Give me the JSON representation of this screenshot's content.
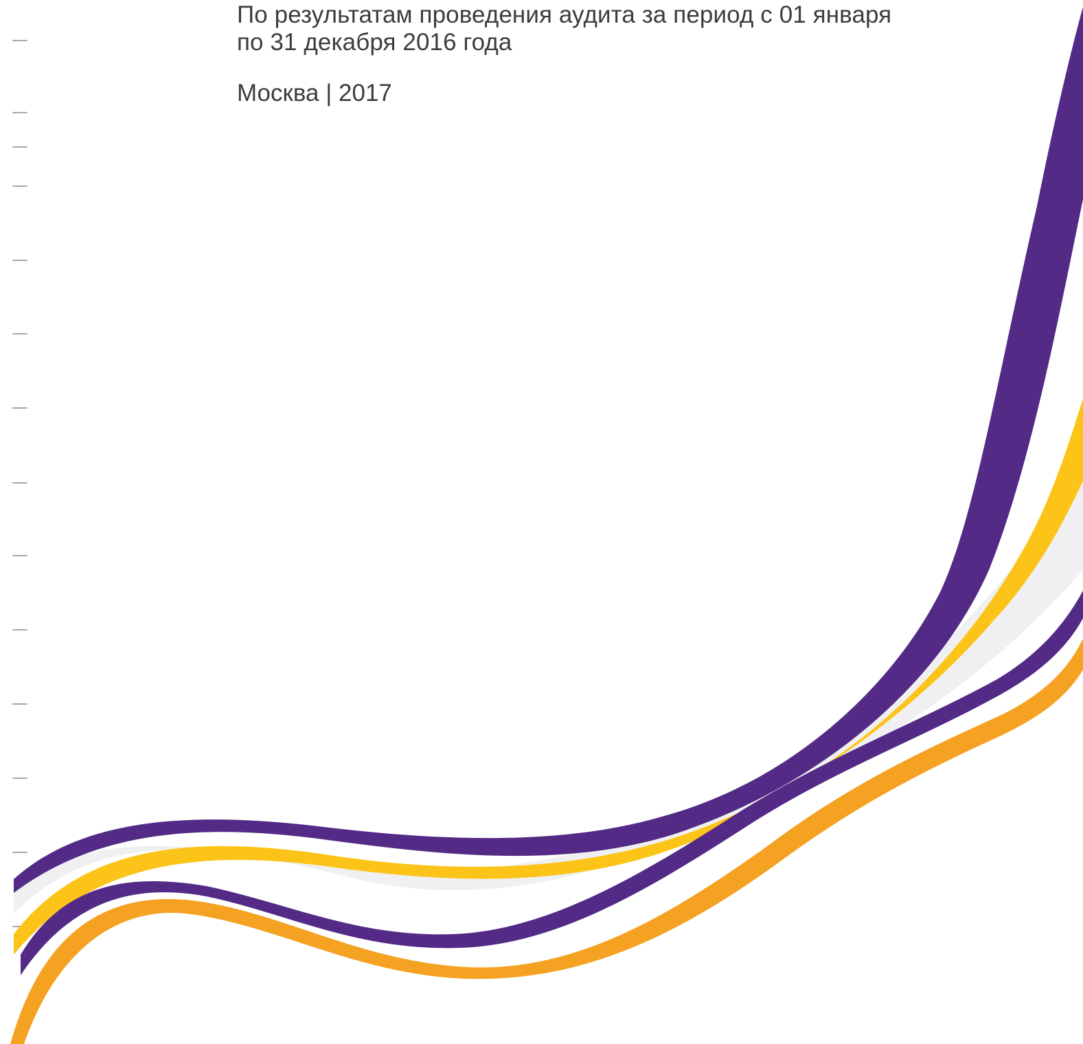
{
  "document": {
    "subtitle_line1": "По результатам проведения аудита за период с 01 января",
    "subtitle_line2": "по 31 декабря 2016 года",
    "city_year": "Москва | 2017"
  },
  "colors": {
    "purple": "#532b86",
    "yellow": "#fcc419",
    "orange": "#f5a223",
    "light_gray": "#f0f0f2",
    "text": "#3c3c3c"
  }
}
